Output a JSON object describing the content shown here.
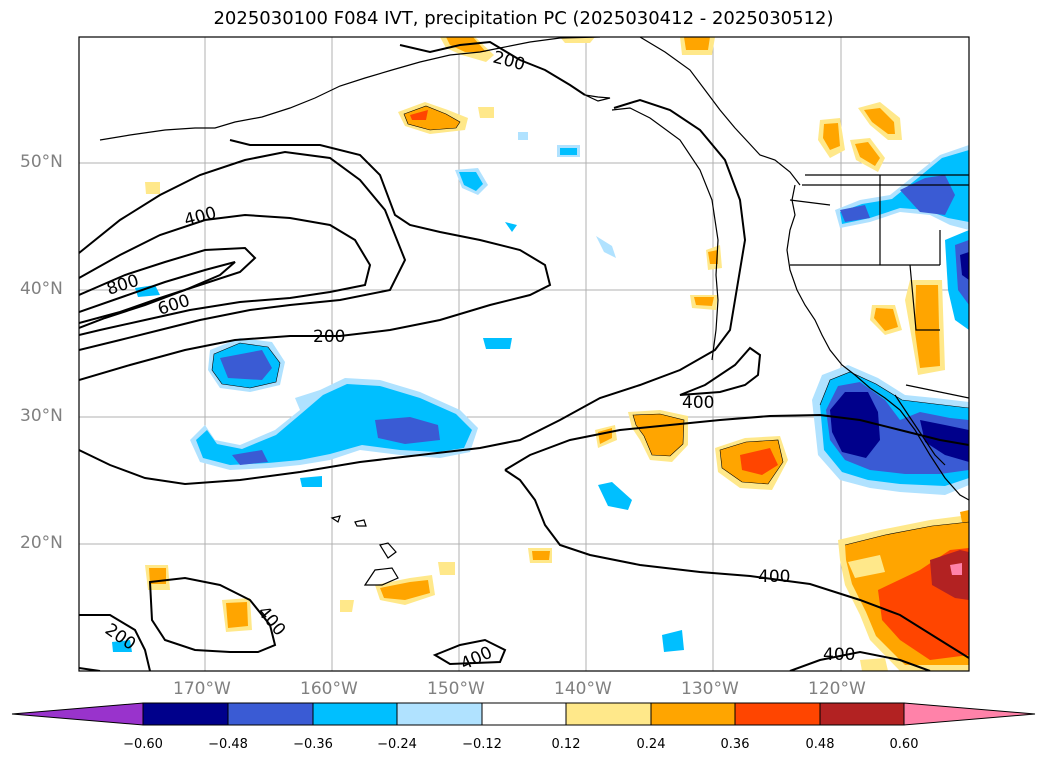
{
  "title": "2025030100 F084 IVT, precipitation PC (2025030412 - 2025030512)",
  "lat_ticks": [
    "50°N",
    "40°N",
    "30°N",
    "20°N"
  ],
  "lon_ticks": [
    "170°W",
    "160°W",
    "150°W",
    "140°W",
    "130°W",
    "120°W"
  ],
  "contour_labels": [
    "200",
    "400",
    "800",
    "600",
    "200",
    "400",
    "400",
    "200",
    "400",
    "400",
    "400"
  ],
  "colorbar": {
    "labels": [
      "−0.60",
      "−0.48",
      "−0.36",
      "−0.24",
      "−0.12",
      "0.12",
      "0.24",
      "0.36",
      "0.48",
      "0.60"
    ],
    "colors": [
      "#9933cc",
      "#00008b",
      "#3a5bd4",
      "#00bfff",
      "#b0e2ff",
      "#ffffff",
      "#ffe88a",
      "#ffa500",
      "#ff4500",
      "#b22222",
      "#ff82a9"
    ]
  }
}
